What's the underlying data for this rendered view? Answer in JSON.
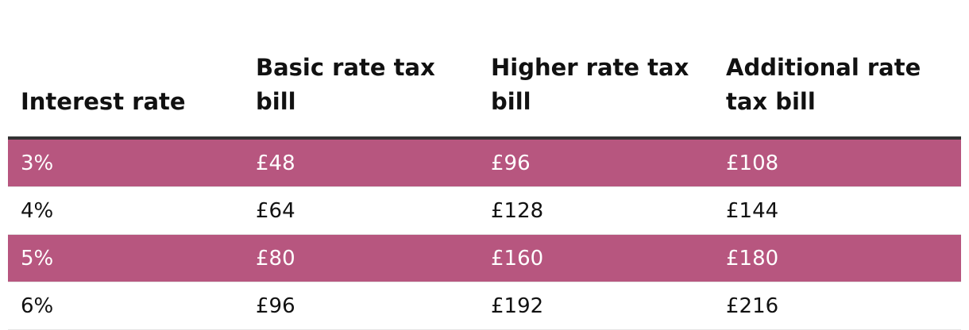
{
  "table": {
    "headers": [
      "Interest rate",
      "Basic rate tax bill",
      "Higher rate tax bill",
      "Additional rate tax bill"
    ],
    "rows": [
      [
        "3%",
        "£48",
        "£96",
        "£108"
      ],
      [
        "4%",
        "£64",
        "£128",
        "£144"
      ],
      [
        "5%",
        "£80",
        "£160",
        "£180"
      ],
      [
        "6%",
        "£96",
        "£192",
        "£216"
      ]
    ],
    "shaded_row_color": "#b7567f"
  }
}
